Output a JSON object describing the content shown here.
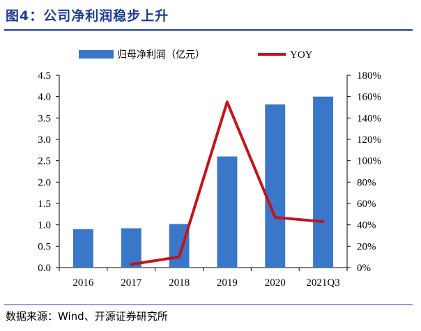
{
  "page": {
    "title": "图4：公司净利润稳步上升",
    "source": "数据来源：Wind、开源证券研究所"
  },
  "colors": {
    "bar": "#3a77c8",
    "line": "#c0151d",
    "rule": "#1f3b8f"
  },
  "chart_data": {
    "type": "bar+line",
    "categories": [
      "2016",
      "2017",
      "2018",
      "2019",
      "2020",
      "2021Q3"
    ],
    "series": [
      {
        "name": "归母净利润（亿元）",
        "type": "bar",
        "axis": "left",
        "values": [
          0.9,
          0.92,
          1.02,
          2.6,
          3.82,
          4.0
        ]
      },
      {
        "name": "YOY",
        "type": "line",
        "axis": "right",
        "values": [
          null,
          0.03,
          0.1,
          1.55,
          0.47,
          0.43
        ]
      }
    ],
    "yleft": {
      "ylim": [
        0,
        4.5
      ],
      "ticks": [
        "0.0",
        "0.5",
        "1.0",
        "1.5",
        "2.0",
        "2.5",
        "3.0",
        "3.5",
        "4.0",
        "4.5"
      ]
    },
    "yright": {
      "ylim": [
        0,
        1.8
      ],
      "ticks": [
        "0%",
        "20%",
        "40%",
        "60%",
        "80%",
        "100%",
        "120%",
        "140%",
        "160%",
        "180%"
      ]
    },
    "legend": "top-center",
    "grid": false
  }
}
